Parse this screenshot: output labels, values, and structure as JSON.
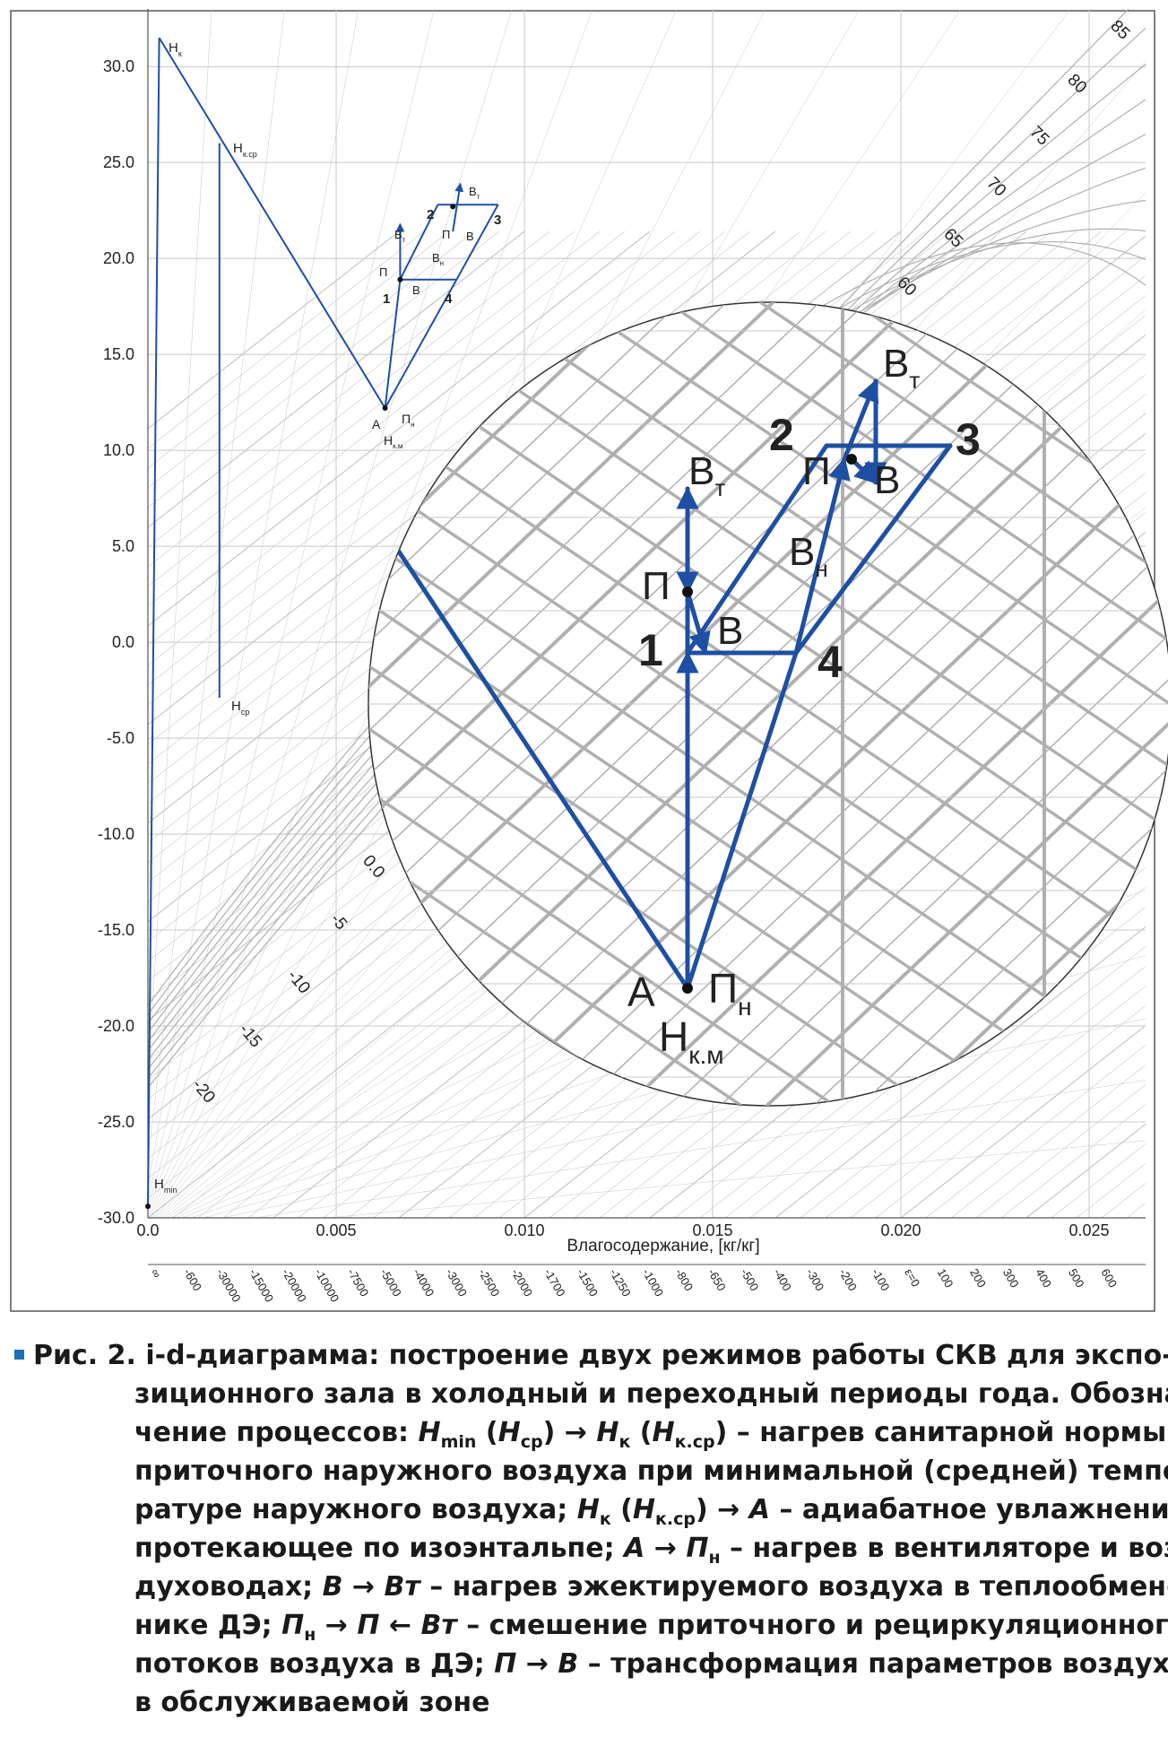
{
  "chart_data": {
    "type": "line",
    "title": "",
    "xlabel": "Влагосодержание, [кг/кг]",
    "ylabel": "",
    "xlim": [
      0,
      0.0265
    ],
    "ylim": [
      -30,
      33
    ],
    "x_ticks": [
      "0.0",
      "0.005",
      "0.010",
      "0.015",
      "0.020",
      "0.025"
    ],
    "y_ticks": [
      "-30.0",
      "-25.0",
      "-20.0",
      "-15.0",
      "-10.0",
      "-5.0",
      "0.0",
      "5.0",
      "10.0",
      "15.0",
      "20.0",
      "25.0",
      "30.0"
    ],
    "grid": true,
    "rh_labels": [
      "85",
      "80",
      "75",
      "70",
      "65",
      "60"
    ],
    "saturation_temp_labels": [
      "0.0",
      "-5",
      "-10",
      "-15",
      "-20"
    ],
    "enthalpy_ratio_labels": [
      "∞",
      "-600",
      "-30000",
      "-15000",
      "-20000",
      "-10000",
      "-7500",
      "-5000",
      "-4000",
      "-3000",
      "-2500",
      "-2000",
      "-1700",
      "-1500",
      "-1250",
      "-1000",
      "-800",
      "-650",
      "-500",
      "-400",
      "-300",
      "-200",
      "-100",
      "ε=0",
      "100",
      "200",
      "300",
      "400",
      "500",
      "600"
    ],
    "series": [
      {
        "points": [
          {
            "label": "H_min",
            "x": 0.0,
            "y": -29.4
          },
          {
            "label": "H_к",
            "x": 0.0003,
            "y": 31.5
          },
          {
            "label": "A Пн Hк.м",
            "x": 0.0063,
            "y": 12.2
          },
          {
            "label": "H_к.ср",
            "x": 0.0019,
            "y": 26.0
          },
          {
            "label": "H_ср",
            "x": 0.0019,
            "y": -2.9
          }
        ]
      },
      {
        "points": [
          {
            "label": "1",
            "x": 0.0067,
            "y": 18.9
          },
          {
            "label": "2",
            "x": 0.0077,
            "y": 22.8
          },
          {
            "label": "3",
            "x": 0.0093,
            "y": 22.8
          },
          {
            "label": "4",
            "x": 0.0082,
            "y": 18.9
          },
          {
            "label": "В",
            "x": 0.0068,
            "y": 18.9
          },
          {
            "label": "Вт (1)",
            "x": 0.0067,
            "y": 21.8
          },
          {
            "label": "П (1)",
            "x": 0.0067,
            "y": 20.4
          },
          {
            "label": "Вн",
            "x": 0.0081,
            "y": 21.4
          },
          {
            "label": "Вт (2)",
            "x": 0.0083,
            "y": 23.9
          },
          {
            "label": "П (2)",
            "x": 0.0081,
            "y": 22.7
          },
          {
            "label": "В (2)",
            "x": 0.0082,
            "y": 22.5
          }
        ]
      }
    ],
    "point_labels": {
      "H_min": "H",
      "H_min_sub": "min",
      "H_k": "H",
      "H_k_sub": "к",
      "H_kcp": "H",
      "H_kcp_sub": "к.ср",
      "H_cp": "H",
      "H_cp_sub": "ср",
      "A": "A",
      "P_n": "П",
      "P_n_sub": "н",
      "H_km": "H",
      "H_km_sub": "к.м",
      "p1": "1",
      "p2": "2",
      "p3": "3",
      "p4": "4",
      "B": "B",
      "B_t": "B",
      "B_t_sub": "т",
      "P": "П",
      "B_n": "B",
      "B_n_sub": "н"
    }
  },
  "caption": {
    "prefix": "Рис. 2.",
    "line1": "i-d-диаграмма: построение двух режимов работы СКВ для экспо-",
    "line2": "зиционного зала в холодный и переходный периоды года. Обозна-",
    "line3_a": "чение процессов: ",
    "line3_b": "H",
    "line3_c": "min",
    "line3_d": " (",
    "line3_e": "H",
    "line3_f": "ср",
    "line3_g": ") → ",
    "line3_h": "H",
    "line3_i": "к",
    "line3_j": " (",
    "line3_k": "H",
    "line3_l": "к.ср",
    "line3_m": ") – нагрев санитарной нормы",
    "line4": "приточного наружного воздуха при минимальной (средней) темпе-",
    "line5_a": "ратуре наружного воздуха; ",
    "line5_b": "H",
    "line5_c": "к",
    "line5_d": " (",
    "line5_e": "H",
    "line5_f": "к.ср",
    "line5_g": ") → ",
    "line5_h": "A",
    "line5_i": " – адиабатное увлажнение,",
    "line6_a": "протекающее по изоэнтальпе; ",
    "line6_b": "A",
    "line6_c": " → ",
    "line6_d": "П",
    "line6_e": "н",
    "line6_f": " – нагрев в вентиляторе и воз-",
    "line7_a": "духоводах; ",
    "line7_b": "B",
    "line7_c": " → ",
    "line7_d": "Bт",
    "line7_e": " – нагрев эжектируемого воздуха в теплообмен-",
    "line8_a": "нике ДЭ; ",
    "line8_b": "П",
    "line8_c": "н",
    "line8_d": " → ",
    "line8_e": "П",
    "line8_f": " ← ",
    "line8_g": "Bт",
    "line8_h": " – смешение приточного и рециркуляционного",
    "line9_a": "потоков воздуха в ДЭ; ",
    "line9_b": "П",
    "line9_c": " → ",
    "line9_d": "B",
    "line9_e": " – трансформация параметров воздуха",
    "line10": "в обслуживаемой зоне"
  },
  "colors": {
    "process": "#1e4fa3",
    "grid": "#c8c8c8",
    "grid_bold": "#b0b0b0",
    "text": "#222222",
    "bullet": "#1f6fbf"
  }
}
